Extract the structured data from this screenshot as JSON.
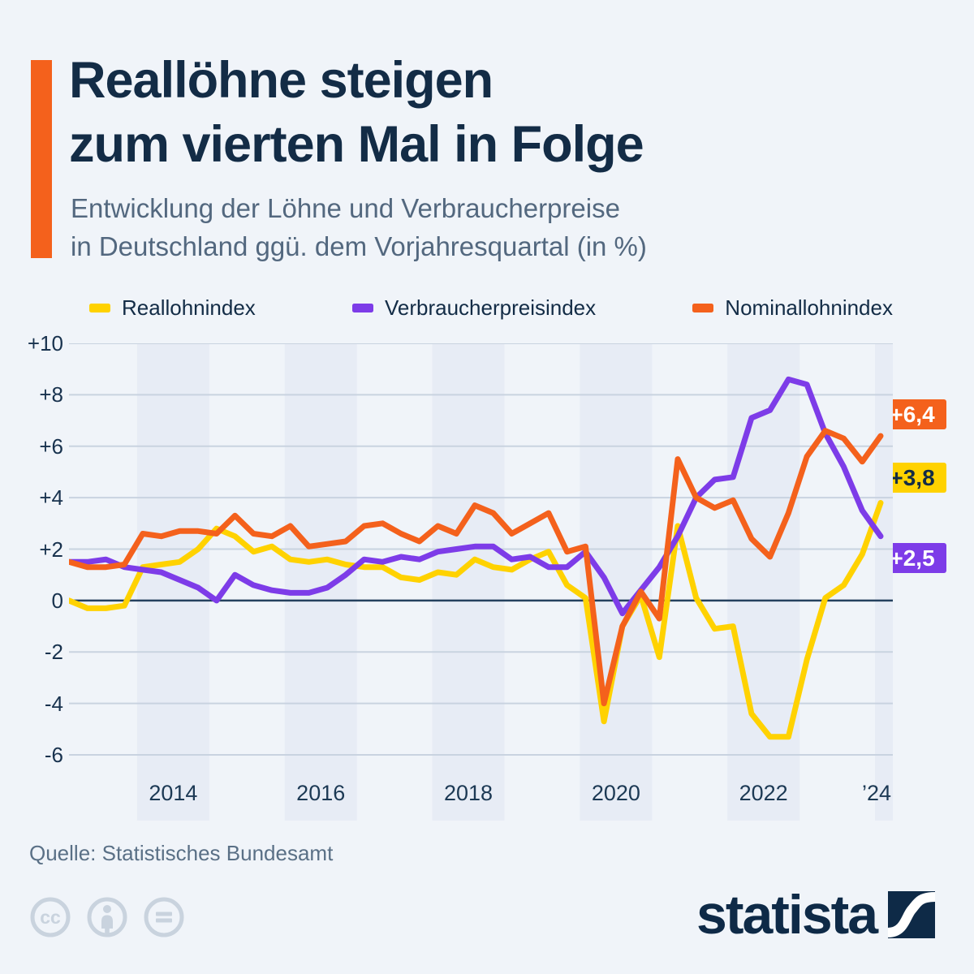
{
  "title": {
    "line1": "Reallöhne steigen",
    "line2": "zum vierten Mal in Folge"
  },
  "subtitle": {
    "line1": "Entwicklung der Löhne und Verbraucherpreise",
    "line2": "in Deutschland ggü. dem Vorjahresquartal (in %)"
  },
  "colors": {
    "background": "#f0f4f9",
    "year_band": "#e7ecf5",
    "gridline": "#c9d3e0",
    "zero_line": "#24415e",
    "heading_navy": "#132c46",
    "subtitle_gray": "#53687f",
    "accent_orange": "#f4611c"
  },
  "chart_data": {
    "type": "line",
    "frequency": "quarterly",
    "x_start": "2013-Q1",
    "x_end": "2024-Q1",
    "x_tick_labels": [
      "2014",
      "2016",
      "2018",
      "2020",
      "2022",
      "’24"
    ],
    "shaded_year_bands": [
      2014,
      2016,
      2018,
      2020,
      2022,
      2024
    ],
    "ylim": [
      -7.5,
      10
    ],
    "y_ticks": [
      "+10",
      "+8",
      "+6",
      "+4",
      "+2",
      "0",
      "-2",
      "-4",
      "-6"
    ],
    "grid": true,
    "legend_position": "top",
    "series": [
      {
        "name": "Reallohnindex",
        "color": "#ffd200",
        "values": [
          0.0,
          -0.3,
          -0.3,
          -0.2,
          1.3,
          1.4,
          1.5,
          2.0,
          2.8,
          2.5,
          1.9,
          2.1,
          1.6,
          1.5,
          1.6,
          1.4,
          1.3,
          1.3,
          0.9,
          0.8,
          1.1,
          1.0,
          1.6,
          1.3,
          1.2,
          1.6,
          1.9,
          0.6,
          0.1,
          -4.7,
          -1.0,
          0.2,
          -2.2,
          2.9,
          0.1,
          -1.1,
          -1.0,
          -4.4,
          -5.3,
          -5.3,
          -2.3,
          0.1,
          0.6,
          1.8,
          3.8
        ]
      },
      {
        "name": "Verbraucherpreisindex",
        "color": "#7d3ce8",
        "values": [
          1.5,
          1.5,
          1.6,
          1.3,
          1.2,
          1.1,
          0.8,
          0.5,
          0.0,
          1.0,
          0.6,
          0.4,
          0.3,
          0.3,
          0.5,
          1.0,
          1.6,
          1.5,
          1.7,
          1.6,
          1.9,
          2.0,
          2.1,
          2.1,
          1.6,
          1.7,
          1.3,
          1.3,
          1.9,
          0.9,
          -0.5,
          0.4,
          1.3,
          2.5,
          4.0,
          4.7,
          4.8,
          7.1,
          7.4,
          8.6,
          8.4,
          6.5,
          5.2,
          3.5,
          2.5
        ]
      },
      {
        "name": "Nominallohnindex",
        "color": "#f4611c",
        "values": [
          1.5,
          1.3,
          1.3,
          1.4,
          2.6,
          2.5,
          2.7,
          2.7,
          2.6,
          3.3,
          2.6,
          2.5,
          2.9,
          2.1,
          2.2,
          2.3,
          2.9,
          3.0,
          2.6,
          2.3,
          2.9,
          2.6,
          3.7,
          3.4,
          2.6,
          3.0,
          3.4,
          1.9,
          2.1,
          -4.0,
          -1.0,
          0.35,
          -0.7,
          5.5,
          4.0,
          3.6,
          3.9,
          2.4,
          1.7,
          3.4,
          5.6,
          6.6,
          6.3,
          5.4,
          6.4
        ]
      }
    ],
    "end_labels": [
      {
        "series": "Nominallohnindex",
        "text": "+6,4"
      },
      {
        "series": "Reallohnindex",
        "text": "+3,8"
      },
      {
        "series": "Verbraucherpreisindex",
        "text": "+2,5"
      }
    ]
  },
  "footer": {
    "source": "Quelle: Statistisches Bundesamt",
    "license_icons": [
      "cc-icon",
      "attribution-person-icon",
      "equals-icon"
    ],
    "brand_wordmark": "statista"
  }
}
